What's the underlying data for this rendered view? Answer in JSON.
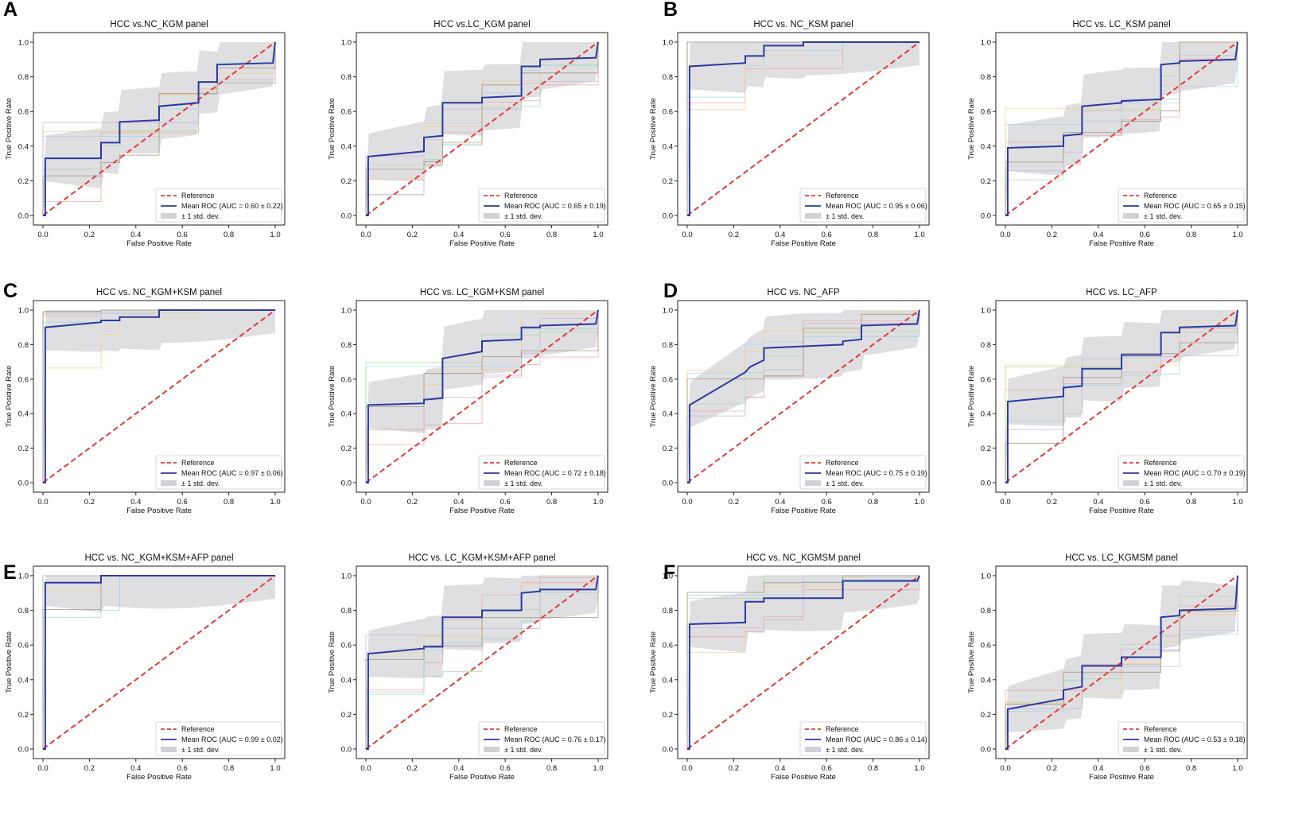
{
  "figure": {
    "panel_labels": [
      "A",
      "B",
      "C",
      "D",
      "E",
      "F"
    ]
  },
  "colors": {
    "mean": "#2b3a9e",
    "reference": "#e03c3c",
    "band": "#d2d2d6",
    "axis": "#222222",
    "fold_palette": [
      "#f4a0a0",
      "#9ad0e8",
      "#a8d8a0",
      "#f5cf8a",
      "#c7b0d8",
      "#9c8a6a",
      "#b8b8b8",
      "#e8d870"
    ]
  },
  "chart_data": [
    {
      "type": "line",
      "panel": "A",
      "title": "HCC vs.NC_KGM panel",
      "xlabel": "False Positive Rate",
      "ylabel": "True Positive Rate",
      "xlim": [
        0,
        1
      ],
      "ylim": [
        0,
        1
      ],
      "xticks": [
        "0.0",
        "0.2",
        "0.4",
        "0.6",
        "0.8",
        "1.0"
      ],
      "yticks": [
        "0.0",
        "0.2",
        "0.4",
        "0.6",
        "0.8",
        "1.0"
      ],
      "legend": {
        "reference": "Reference",
        "mean": "Mean ROC (AUC = 0.60 ± 0.22)",
        "band": "± 1 std. dev.",
        "position": "lower right"
      },
      "mean_roc": {
        "x": [
          0,
          0.01,
          0.01,
          0.25,
          0.25,
          0.33,
          0.33,
          0.5,
          0.5,
          0.67,
          0.67,
          0.75,
          0.75,
          0.99,
          1.0
        ],
        "y": [
          0,
          0,
          0.33,
          0.33,
          0.42,
          0.42,
          0.54,
          0.55,
          0.63,
          0.65,
          0.77,
          0.77,
          0.87,
          0.88,
          1.0
        ]
      }
    },
    {
      "type": "line",
      "panel": "A",
      "title": "HCC vs.LC_KGM panel",
      "xlabel": "False Positive Rate",
      "ylabel": "True Positive Rate",
      "xlim": [
        0,
        1
      ],
      "ylim": [
        0,
        1
      ],
      "xticks": [
        "0.0",
        "0.2",
        "0.4",
        "0.6",
        "0.8",
        "1.0"
      ],
      "yticks": [
        "0.0",
        "0.2",
        "0.4",
        "0.6",
        "0.8",
        "1.0"
      ],
      "legend": {
        "reference": "Reference",
        "mean": "Mean ROC (AUC = 0.65 ± 0.19)",
        "band": "± 1 std. dev.",
        "position": "lower right"
      },
      "mean_roc": {
        "x": [
          0,
          0.01,
          0.01,
          0.25,
          0.25,
          0.33,
          0.33,
          0.5,
          0.5,
          0.67,
          0.67,
          0.75,
          0.75,
          0.99,
          1.0
        ],
        "y": [
          0,
          0,
          0.34,
          0.37,
          0.45,
          0.46,
          0.65,
          0.65,
          0.68,
          0.69,
          0.86,
          0.86,
          0.9,
          0.91,
          1.0
        ]
      }
    },
    {
      "type": "line",
      "panel": "B",
      "title": "HCC vs. NC_KSM panel",
      "xlabel": "False Positive Rate",
      "ylabel": "True Positive Rate",
      "xlim": [
        0,
        1
      ],
      "ylim": [
        0,
        1
      ],
      "xticks": [
        "0.0",
        "0.2",
        "0.4",
        "0.6",
        "0.8",
        "1.0"
      ],
      "yticks": [
        "0.0",
        "0.2",
        "0.4",
        "0.6",
        "0.8",
        "1.0"
      ],
      "legend": {
        "reference": "Reference",
        "mean": "Mean ROC (AUC = 0.95 ± 0.06)",
        "band": "± 1 std. dev.",
        "position": "lower right"
      },
      "mean_roc": {
        "x": [
          0,
          0.01,
          0.01,
          0.25,
          0.25,
          0.33,
          0.33,
          0.5,
          0.5,
          1.0
        ],
        "y": [
          0,
          0,
          0.86,
          0.88,
          0.92,
          0.92,
          0.98,
          0.98,
          1.0,
          1.0
        ]
      }
    },
    {
      "type": "line",
      "panel": "B",
      "title": "HCC vs. LC_KSM panel",
      "xlabel": "False Positive Rate",
      "ylabel": "True Positive Rate",
      "xlim": [
        0,
        1
      ],
      "ylim": [
        0,
        1
      ],
      "xticks": [
        "0.0",
        "0.2",
        "0.4",
        "0.6",
        "0.8",
        "1.0"
      ],
      "yticks": [
        "0.0",
        "0.2",
        "0.4",
        "0.6",
        "0.8",
        "1.0"
      ],
      "legend": {
        "reference": "Reference",
        "mean": "Mean ROC (AUC = 0.65 ± 0.15)",
        "band": "± 1 std. dev.",
        "position": "lower right"
      },
      "mean_roc": {
        "x": [
          0,
          0.01,
          0.01,
          0.25,
          0.25,
          0.33,
          0.33,
          0.5,
          0.5,
          0.67,
          0.67,
          0.75,
          0.75,
          0.99,
          1.0
        ],
        "y": [
          0,
          0,
          0.39,
          0.4,
          0.46,
          0.47,
          0.63,
          0.65,
          0.66,
          0.67,
          0.87,
          0.88,
          0.89,
          0.9,
          1.0
        ]
      }
    },
    {
      "type": "line",
      "panel": "C",
      "title": "HCC vs. NC_KGM+KSM panel",
      "xlabel": "False Positive Rate",
      "ylabel": "True Positive Rate",
      "xlim": [
        0,
        1
      ],
      "ylim": [
        0,
        1
      ],
      "xticks": [
        "0.0",
        "0.2",
        "0.4",
        "0.6",
        "0.8",
        "1.0"
      ],
      "yticks": [
        "0.0",
        "0.2",
        "0.4",
        "0.6",
        "0.8",
        "1.0"
      ],
      "legend": {
        "reference": "Reference",
        "mean": "Mean ROC (AUC = 0.97 ± 0.06)",
        "band": "± 1 std. dev.",
        "position": "lower right"
      },
      "mean_roc": {
        "x": [
          0,
          0.01,
          0.01,
          0.25,
          0.25,
          0.33,
          0.33,
          0.5,
          0.5,
          1.0
        ],
        "y": [
          0,
          0,
          0.9,
          0.93,
          0.94,
          0.94,
          0.96,
          0.96,
          1.0,
          1.0
        ]
      }
    },
    {
      "type": "line",
      "panel": "C",
      "title": "HCC vs. LC_KGM+KSM panel",
      "xlabel": "False Positive Rate",
      "ylabel": "True Positive Rate",
      "xlim": [
        0,
        1
      ],
      "ylim": [
        0,
        1
      ],
      "xticks": [
        "0.0",
        "0.2",
        "0.4",
        "0.6",
        "0.8",
        "1.0"
      ],
      "yticks": [
        "0.0",
        "0.2",
        "0.4",
        "0.6",
        "0.8",
        "1.0"
      ],
      "legend": {
        "reference": "Reference",
        "mean": "Mean ROC (AUC = 0.72 ± 0.18)",
        "band": "± 1 std. dev.",
        "position": "lower right"
      },
      "mean_roc": {
        "x": [
          0,
          0.01,
          0.01,
          0.25,
          0.25,
          0.33,
          0.33,
          0.5,
          0.5,
          0.67,
          0.67,
          0.75,
          0.75,
          0.99,
          1.0
        ],
        "y": [
          0,
          0,
          0.45,
          0.46,
          0.48,
          0.49,
          0.72,
          0.76,
          0.82,
          0.83,
          0.9,
          0.9,
          0.91,
          0.92,
          1.0
        ]
      }
    },
    {
      "type": "line",
      "panel": "D",
      "title": "HCC vs. NC_AFP",
      "xlabel": "False Positive Rate",
      "ylabel": "True Positive Rate",
      "xlim": [
        0,
        1
      ],
      "ylim": [
        0,
        1
      ],
      "xticks": [
        "0.0",
        "0.2",
        "0.4",
        "0.6",
        "0.8",
        "1.0"
      ],
      "yticks": [
        "0.0",
        "0.2",
        "0.4",
        "0.6",
        "0.8",
        "1.0"
      ],
      "legend": {
        "reference": "Reference",
        "mean": "Mean ROC (AUC = 0.75 ± 0.19)",
        "band": "± 1 std. dev.",
        "position": "lower right"
      },
      "mean_roc": {
        "x": [
          0,
          0.01,
          0.01,
          0.25,
          0.27,
          0.33,
          0.33,
          0.67,
          0.67,
          0.75,
          0.75,
          0.99,
          1.0
        ],
        "y": [
          0,
          0,
          0.45,
          0.64,
          0.67,
          0.71,
          0.78,
          0.8,
          0.82,
          0.83,
          0.91,
          0.92,
          1.0
        ]
      }
    },
    {
      "type": "line",
      "panel": "D",
      "title": "HCC vs. LC_AFP",
      "xlabel": "False Positive Rate",
      "ylabel": "True Positive Rate",
      "xlim": [
        0,
        1
      ],
      "ylim": [
        0,
        1
      ],
      "xticks": [
        "0.0",
        "0.2",
        "0.4",
        "0.6",
        "0.8",
        "1.0"
      ],
      "yticks": [
        "0.0",
        "0.2",
        "0.4",
        "0.6",
        "0.8",
        "1.0"
      ],
      "legend": {
        "reference": "Reference",
        "mean": "Mean ROC (AUC = 0.70 ± 0.19)",
        "band": "± 1 std. dev.",
        "position": "lower right"
      },
      "mean_roc": {
        "x": [
          0,
          0.01,
          0.01,
          0.25,
          0.25,
          0.33,
          0.33,
          0.5,
          0.5,
          0.67,
          0.67,
          0.75,
          0.75,
          0.99,
          1.0
        ],
        "y": [
          0,
          0,
          0.47,
          0.5,
          0.55,
          0.56,
          0.66,
          0.66,
          0.74,
          0.74,
          0.87,
          0.87,
          0.9,
          0.91,
          1.0
        ]
      }
    },
    {
      "type": "line",
      "panel": "E",
      "title": "HCC vs. NC_KGM+KSM+AFP panel",
      "xlabel": "False Positive Rate",
      "ylabel": "True Positive Rate",
      "xlim": [
        0,
        1
      ],
      "ylim": [
        0,
        1
      ],
      "xticks": [
        "0.0",
        "0.2",
        "0.4",
        "0.6",
        "0.8",
        "1.0"
      ],
      "yticks": [
        "0.0",
        "0.2",
        "0.4",
        "0.6",
        "0.8",
        "1.0"
      ],
      "legend": {
        "reference": "Reference",
        "mean": "Mean ROC (AUC = 0.99 ± 0.02)",
        "band": "± 1 std. dev.",
        "position": "lower right"
      },
      "mean_roc": {
        "x": [
          0,
          0.01,
          0.01,
          0.25,
          0.25,
          1.0
        ],
        "y": [
          0,
          0,
          0.96,
          0.96,
          1.0,
          1.0
        ]
      }
    },
    {
      "type": "line",
      "panel": "E",
      "title": "HCC vs. LC_KGM+KSM+AFP panel",
      "xlabel": "False Positive Rate",
      "ylabel": "True Positive Rate",
      "xlim": [
        0,
        1
      ],
      "ylim": [
        0,
        1
      ],
      "xticks": [
        "0.0",
        "0.2",
        "0.4",
        "0.6",
        "0.8",
        "1.0"
      ],
      "yticks": [
        "0.0",
        "0.2",
        "0.4",
        "0.6",
        "0.8",
        "1.0"
      ],
      "legend": {
        "reference": "Reference",
        "mean": "Mean ROC (AUC = 0.76 ± 0.17)",
        "band": "± 1 std. dev.",
        "position": "lower right"
      },
      "mean_roc": {
        "x": [
          0,
          0.01,
          0.01,
          0.25,
          0.25,
          0.33,
          0.33,
          0.5,
          0.5,
          0.67,
          0.67,
          0.75,
          0.75,
          0.99,
          1.0
        ],
        "y": [
          0,
          0,
          0.55,
          0.58,
          0.59,
          0.59,
          0.76,
          0.76,
          0.8,
          0.8,
          0.9,
          0.91,
          0.92,
          0.92,
          1.0
        ]
      }
    },
    {
      "type": "line",
      "panel": "F",
      "title": "HCC vs. NC_KGMSM panel",
      "xlabel": "False Positive Rate",
      "ylabel": "True Positive Rate",
      "xlim": [
        0,
        1
      ],
      "ylim": [
        0,
        1
      ],
      "xticks": [
        "0.0",
        "0.2",
        "0.4",
        "0.6",
        "0.8",
        "1.0"
      ],
      "yticks": [
        "0.0",
        "0.2",
        "0.4",
        "0.6",
        "0.8",
        "1.0"
      ],
      "legend": {
        "reference": "Reference",
        "mean": "Mean ROC (AUC = 0.86 ± 0.14)",
        "band": "± 1 std. dev.",
        "position": "lower right"
      },
      "mean_roc": {
        "x": [
          0,
          0.01,
          0.01,
          0.25,
          0.25,
          0.33,
          0.33,
          0.67,
          0.67,
          0.99,
          1.0
        ],
        "y": [
          0,
          0,
          0.72,
          0.73,
          0.85,
          0.85,
          0.87,
          0.87,
          0.97,
          0.97,
          1.0
        ]
      }
    },
    {
      "type": "line",
      "panel": "F",
      "title": "HCC vs. LC_KGMSM panel",
      "xlabel": "False Positive Rate",
      "ylabel": "True Positive Rate",
      "xlim": [
        0,
        1
      ],
      "ylim": [
        0,
        1
      ],
      "xticks": [
        "0.0",
        "0.2",
        "0.4",
        "0.6",
        "0.8",
        "1.0"
      ],
      "yticks": [
        "0.0",
        "0.2",
        "0.4",
        "0.6",
        "0.8",
        "1.0"
      ],
      "legend": {
        "reference": "Reference",
        "mean": "Mean ROC (AUC = 0.53 ± 0.18)",
        "band": "± 1 std. dev.",
        "position": "lower right"
      },
      "mean_roc": {
        "x": [
          0,
          0.01,
          0.01,
          0.25,
          0.25,
          0.33,
          0.33,
          0.5,
          0.5,
          0.67,
          0.67,
          0.75,
          0.75,
          0.99,
          1.0
        ],
        "y": [
          0,
          0,
          0.23,
          0.29,
          0.34,
          0.36,
          0.48,
          0.48,
          0.53,
          0.53,
          0.76,
          0.77,
          0.8,
          0.81,
          1.0
        ]
      }
    }
  ]
}
